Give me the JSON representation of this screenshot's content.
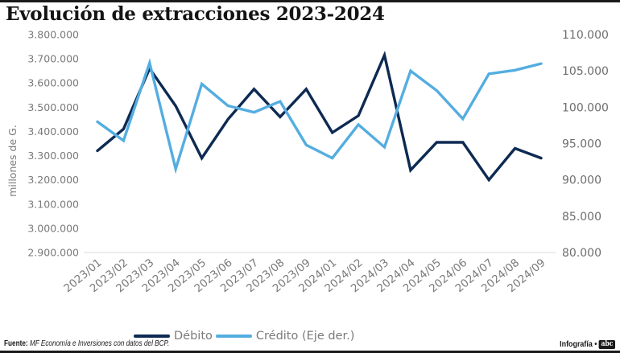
{
  "chart_data": {
    "type": "line",
    "title": "Evolución de extracciones 2023-2024",
    "ylabel": "millones de G.",
    "ylabel_right": "",
    "xlabel": "",
    "x": [
      "2023/01",
      "2023/02",
      "2023/03",
      "2023/04",
      "2023/05",
      "2023/06",
      "2023/07",
      "2023/08",
      "2023/09",
      "2024/01",
      "2024/02",
      "2024/03",
      "2024/04",
      "2024/05",
      "2024/06",
      "2024/07",
      "2024/08",
      "2024/09"
    ],
    "ylim": [
      2900000,
      3800000
    ],
    "ylim_right": [
      80000,
      110000
    ],
    "yticks": [
      "3.800.000",
      "3.700.000",
      "3.600.000",
      "3.500.000",
      "3.400.000",
      "3.300.000",
      "3.200.000",
      "3.100.000",
      "3.000.000",
      "2.900.000"
    ],
    "yticks_right": [
      "110.000",
      "105.000",
      "100.000",
      "95.000",
      "90.000",
      "85.000",
      "80.000"
    ],
    "grid": "baseline only",
    "legend": "bottom-center",
    "series": [
      {
        "name": "Débito",
        "axis": "left",
        "color": "#0d2a52",
        "values": [
          3320000,
          3410000,
          3660000,
          3505000,
          3290000,
          3450000,
          3575000,
          3460000,
          3575000,
          3395000,
          3465000,
          3715000,
          3240000,
          3355000,
          3355000,
          3200000,
          3330000,
          3290000
        ]
      },
      {
        "name": "Crédito (Eje der.)",
        "axis": "right",
        "color": "#54ade0",
        "values": [
          98000,
          95400,
          106100,
          91500,
          103200,
          100200,
          99300,
          100800,
          94800,
          93000,
          97600,
          94500,
          105000,
          102300,
          98400,
          104600,
          105100,
          106000
        ]
      }
    ]
  },
  "footer": {
    "source_label": "Fuente:",
    "source_text": "MF Economía e Inversiones con datos del BCP.",
    "credit": "Infografía •",
    "logo_text": "abc"
  },
  "colors": {
    "debito": "#0d2a52",
    "credito": "#54ade0",
    "text": "#7a7a7a"
  }
}
